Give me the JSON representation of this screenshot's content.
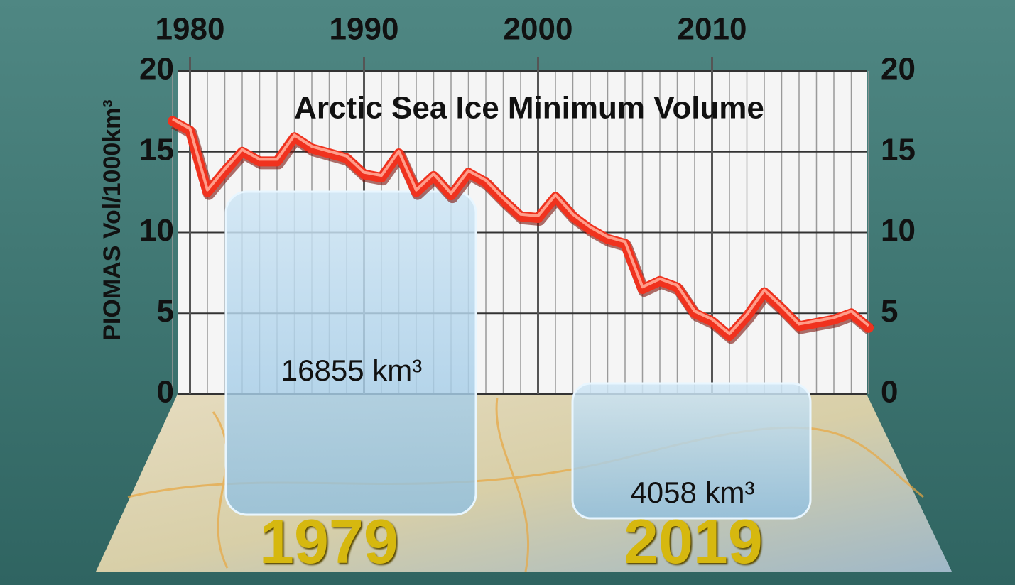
{
  "chart_data": {
    "type": "line",
    "title": "Arctic Sea Ice Minimum Volume",
    "y_label": "PIOMAS Vol/1000km³",
    "x": [
      1979,
      1980,
      1981,
      1982,
      1983,
      1984,
      1985,
      1986,
      1987,
      1988,
      1989,
      1990,
      1991,
      1992,
      1993,
      1994,
      1995,
      1996,
      1997,
      1998,
      1999,
      2000,
      2001,
      2002,
      2003,
      2004,
      2005,
      2006,
      2007,
      2008,
      2009,
      2010,
      2011,
      2012,
      2013,
      2014,
      2015,
      2016,
      2017,
      2018,
      2019
    ],
    "series": [
      {
        "name": "PIOMAS minimum volume",
        "color": "#f0321e",
        "values": [
          16.9,
          16.3,
          12.5,
          13.8,
          15.0,
          14.4,
          14.4,
          15.9,
          15.2,
          14.9,
          14.6,
          13.6,
          13.4,
          14.9,
          12.5,
          13.5,
          12.3,
          13.7,
          13.1,
          12.0,
          11.0,
          10.9,
          12.2,
          11.0,
          10.2,
          9.6,
          9.3,
          6.5,
          7.0,
          6.6,
          5.0,
          4.5,
          3.6,
          4.8,
          6.3,
          5.3,
          4.2,
          4.4,
          4.6,
          5.0,
          4.1
        ]
      }
    ],
    "xlim": [
      1979,
      2019
    ],
    "xticks": [
      1980,
      1990,
      2000,
      2010
    ],
    "ylim": [
      0,
      20
    ],
    "yticks": [
      0,
      5,
      10,
      15,
      20
    ],
    "grid": true,
    "annotations": [
      {
        "text": "16855 km³",
        "year": "1979"
      },
      {
        "text": "4058 km³",
        "year": "2019"
      }
    ]
  }
}
